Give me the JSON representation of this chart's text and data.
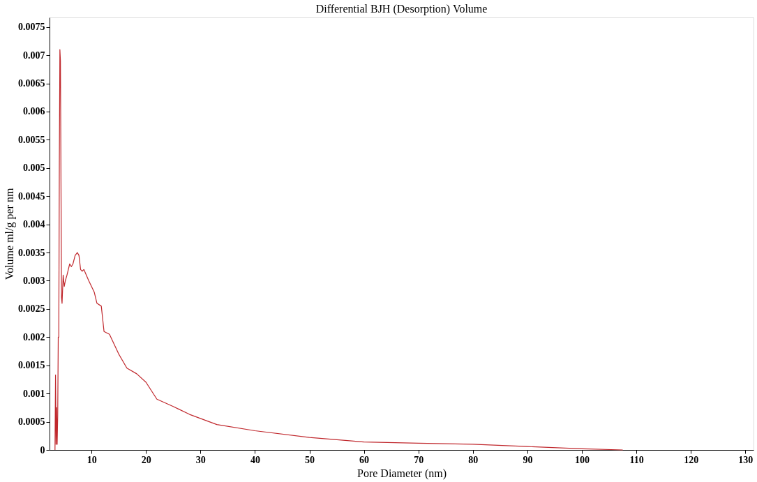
{
  "chart_data": {
    "type": "line",
    "title": "Differential BJH (Desorption) Volume",
    "xlabel": "Pore Diameter (nm)",
    "ylabel": "Volume ml/g per nm",
    "x": [
      3.3,
      3.4,
      3.5,
      3.6,
      3.7,
      3.8,
      3.9,
      4.0,
      4.1,
      4.2,
      4.3,
      4.4,
      4.5,
      4.6,
      4.8,
      5.0,
      5.2,
      5.5,
      6.0,
      6.3,
      6.6,
      7.0,
      7.4,
      7.7,
      8.0,
      8.3,
      8.6,
      9.5,
      10.5,
      11.0,
      11.8,
      12.3,
      13.3,
      15,
      16.5,
      18.3,
      20,
      22,
      25,
      28,
      33,
      40,
      50,
      60,
      70,
      80,
      90,
      100,
      107.5
    ],
    "series": [
      {
        "color": "#c0282d",
        "values": [
          0,
          0.00133,
          0.0001,
          0.00075,
          0.0001,
          0.0006,
          0.002,
          0.002,
          0.0051,
          0.0071,
          0.0069,
          0.0048,
          0.0027,
          0.0026,
          0.0031,
          0.0029,
          0.003,
          0.0031,
          0.0033,
          0.00325,
          0.0033,
          0.00345,
          0.0035,
          0.00345,
          0.0032,
          0.00317,
          0.0032,
          0.003,
          0.0028,
          0.0026,
          0.00255,
          0.0021,
          0.00205,
          0.0017,
          0.00145,
          0.00135,
          0.0012,
          0.0009,
          0.00077,
          0.00063,
          0.00045,
          0.00034,
          0.00022,
          0.00014,
          0.00012,
          0.0001,
          6e-05,
          2e-05,
          0
        ]
      }
    ],
    "xlim": [
      2.3,
      131.5
    ],
    "xticks": [
      10,
      20,
      30,
      40,
      50,
      60,
      70,
      80,
      90,
      100,
      110,
      120,
      130
    ],
    "ylim": [
      0,
      0.00767
    ],
    "yticks": [
      0,
      0.0005,
      0.001,
      0.0015,
      0.002,
      0.0025,
      0.003,
      0.0035,
      0.004,
      0.0045,
      0.005,
      0.0055,
      0.006,
      0.0065,
      0.007,
      0.0075
    ],
    "grid": false,
    "legend": false,
    "marker": "none",
    "line_style": "solid"
  }
}
